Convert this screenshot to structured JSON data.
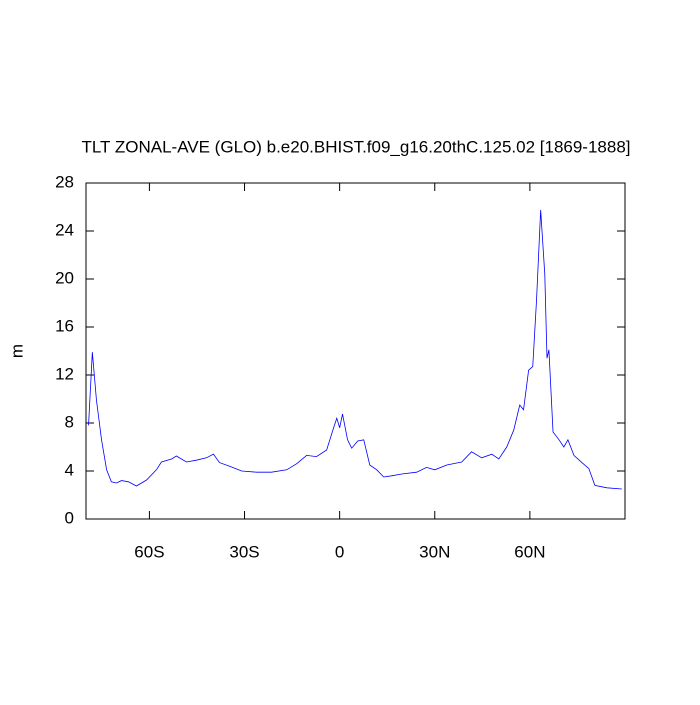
{
  "chart_data": {
    "type": "line",
    "title": "TLT ZONAL-AVE (GLO) b.e20.BHIST.f09_g16.20thC.125.02 [1869-1888]",
    "ylabel": "m",
    "x": [
      -79.2,
      -78,
      -76.7,
      -75.1,
      -73.5,
      -72,
      -70.4,
      -68.8,
      -66.6,
      -64.1,
      -60.9,
      -57.8,
      -56.2,
      -53,
      -51.5,
      -48.3,
      -45.2,
      -42,
      -39.8,
      -37.9,
      -34.7,
      -30.9,
      -26.2,
      -21.5,
      -16.7,
      -13.6,
      -10.4,
      -7.3,
      -4.1,
      -1.9,
      -0.9,
      0,
      0.9,
      2.5,
      3.8,
      5.7,
      7.6,
      9.5,
      11.7,
      13.9,
      16.4,
      19.6,
      24.3,
      27.4,
      30,
      33.8,
      38.5,
      41.6,
      44.8,
      48,
      50.2,
      52.7,
      54.9,
      56.8,
      58,
      59.6,
      60.9,
      62.1,
      63.4,
      64.7,
      65.4,
      66,
      67.3,
      69.2,
      70.7,
      72,
      73.9,
      76.4,
      78.6,
      80.5,
      84.3,
      89
    ],
    "values": [
      7.8,
      13.9,
      9.9,
      6.6,
      4.1,
      3.1,
      3.0,
      3.2,
      3.1,
      2.75,
      3.25,
      4.1,
      4.75,
      5.0,
      5.25,
      4.75,
      4.9,
      5.1,
      5.4,
      4.7,
      4.4,
      4.0,
      3.9,
      3.9,
      4.1,
      4.6,
      5.3,
      5.2,
      5.75,
      7.6,
      8.4,
      7.6,
      8.75,
      6.6,
      5.9,
      6.5,
      6.6,
      4.5,
      4.1,
      3.5,
      3.6,
      3.75,
      3.9,
      4.3,
      4.1,
      4.5,
      4.75,
      5.6,
      5.1,
      5.4,
      5.0,
      6.0,
      7.4,
      9.5,
      9.1,
      12.4,
      12.7,
      18.25,
      25.75,
      20.4,
      13.4,
      14.1,
      7.25,
      6.6,
      6.0,
      6.6,
      5.3,
      4.7,
      4.2,
      2.8,
      2.6,
      2.5
    ],
    "color": "#0000ff",
    "xlim": [
      -80,
      90
    ],
    "xticks": [
      {
        "value": -60,
        "label": "60S"
      },
      {
        "value": -30,
        "label": "30S"
      },
      0,
      {
        "value": 30,
        "label": "30N"
      },
      {
        "value": 60,
        "label": "60N"
      }
    ],
    "ylim": [
      0,
      28
    ],
    "yticks": [
      0,
      4,
      8,
      12,
      16,
      20,
      24,
      28
    ]
  }
}
